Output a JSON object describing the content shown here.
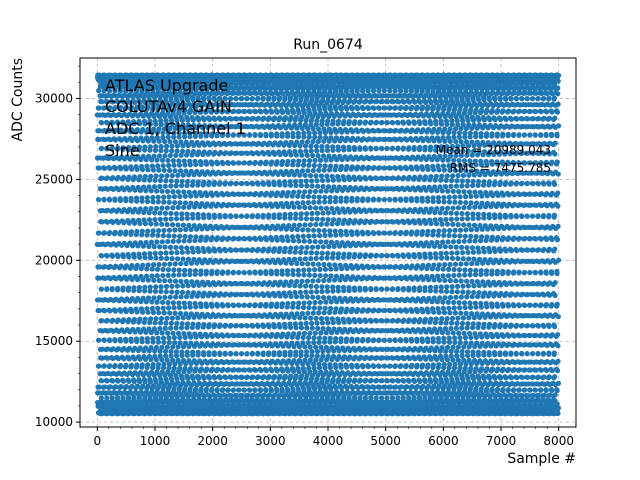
{
  "chart_data": {
    "type": "scatter",
    "title": "Run_0674",
    "xlabel": "Sample #",
    "ylabel": "ADC Counts",
    "xlim": [
      -300,
      8300
    ],
    "ylim": [
      9700,
      32500
    ],
    "xticks": [
      0,
      1000,
      2000,
      3000,
      4000,
      5000,
      6000,
      7000,
      8000
    ],
    "yticks": [
      10000,
      15000,
      20000,
      25000,
      30000
    ],
    "grid": true,
    "series": [
      {
        "color": "#1f77b4",
        "signal": "sine",
        "samples": 8000,
        "y_min": 10520,
        "y_max": 31450
      }
    ],
    "annotations": [
      "ATLAS Upgrade",
      "COLUTAv4 GAIN",
      "ADC 1, Channel 1",
      "Sine"
    ],
    "stats": {
      "mean": "Mean = 20989.043",
      "rms": "RMS = 7475.785"
    }
  }
}
